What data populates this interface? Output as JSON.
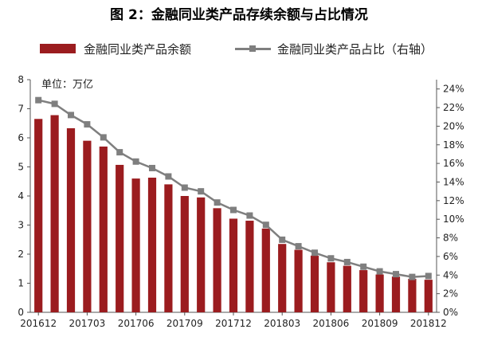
{
  "title": "图 2：金融同业类产品存续余额与占比情况",
  "colors": {
    "bar": "#9b1c1f",
    "line": "#7f7f7f",
    "axis": "#555555",
    "text": "#222222"
  },
  "chart_data": {
    "type": "bar",
    "title": "图 2：金融同业类产品存续余额与占比情况",
    "unit_label": "单位：万亿",
    "legend_position": "top",
    "grid": false,
    "x": [
      "201612",
      "201701",
      "201702",
      "201703",
      "201704",
      "201705",
      "201706",
      "201707",
      "201708",
      "201709",
      "201710",
      "201711",
      "201712",
      "201801",
      "201802",
      "201803",
      "201804",
      "201805",
      "201806",
      "201807",
      "201808",
      "201809",
      "201810",
      "201811",
      "201812"
    ],
    "x_tick_labels": [
      "201612",
      "201703",
      "201706",
      "201709",
      "201712",
      "201803",
      "201806",
      "201809",
      "201812"
    ],
    "y_left": {
      "ylim": [
        0,
        8
      ],
      "ticks": [
        "0",
        "1",
        "2",
        "3",
        "4",
        "5",
        "6",
        "7",
        "8"
      ]
    },
    "y_right": {
      "ylim": [
        0,
        0.25
      ],
      "ticks": [
        "0%",
        "2%",
        "4%",
        "6%",
        "8%",
        "10%",
        "12%",
        "14%",
        "16%",
        "18%",
        "20%",
        "22%",
        "24%"
      ]
    },
    "series": [
      {
        "name": "金融同业类产品余额",
        "type": "bar",
        "axis": "left",
        "values": [
          6.65,
          6.78,
          6.33,
          5.9,
          5.7,
          5.07,
          4.6,
          4.63,
          4.4,
          4.0,
          3.95,
          3.58,
          3.22,
          3.15,
          2.88,
          2.35,
          2.15,
          1.95,
          1.72,
          1.6,
          1.45,
          1.3,
          1.23,
          1.15,
          1.12
        ]
      },
      {
        "name": "金融同业类产品占比（右轴）",
        "type": "line",
        "axis": "right",
        "values": [
          0.228,
          0.224,
          0.212,
          0.202,
          0.188,
          0.172,
          0.162,
          0.155,
          0.146,
          0.134,
          0.13,
          0.118,
          0.11,
          0.104,
          0.094,
          0.078,
          0.071,
          0.064,
          0.058,
          0.054,
          0.049,
          0.044,
          0.041,
          0.038,
          0.039
        ]
      }
    ]
  }
}
